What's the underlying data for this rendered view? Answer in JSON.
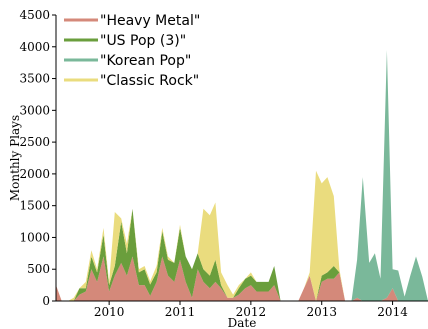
{
  "chart_data": {
    "type": "area",
    "stacked": true,
    "xlabel": "Date",
    "ylabel": "Monthly Plays",
    "xlim": [
      2009.25,
      2014.5
    ],
    "ylim": [
      0,
      4500
    ],
    "yticks": [
      0,
      500,
      1000,
      1500,
      2000,
      2500,
      3000,
      3500,
      4000,
      4500
    ],
    "xticks": [
      2010,
      2011,
      2012,
      2013,
      2014
    ],
    "grid": false,
    "legend_position": "top-left",
    "x": [
      2009.25,
      2009.33,
      2009.42,
      2009.5,
      2009.58,
      2009.67,
      2009.75,
      2009.83,
      2009.92,
      2010.0,
      2010.08,
      2010.17,
      2010.25,
      2010.33,
      2010.42,
      2010.5,
      2010.58,
      2010.67,
      2010.75,
      2010.83,
      2010.92,
      2011.0,
      2011.08,
      2011.17,
      2011.25,
      2011.33,
      2011.42,
      2011.5,
      2011.58,
      2011.67,
      2011.75,
      2011.83,
      2011.92,
      2012.0,
      2012.08,
      2012.17,
      2012.25,
      2012.33,
      2012.42,
      2012.5,
      2012.58,
      2012.67,
      2012.75,
      2012.83,
      2012.92,
      2013.0,
      2013.08,
      2013.17,
      2013.25,
      2013.33,
      2013.42,
      2013.5,
      2013.58,
      2013.67,
      2013.75,
      2013.83,
      2013.92,
      2014.0,
      2014.08,
      2014.17,
      2014.25,
      2014.33,
      2014.42,
      2014.5
    ],
    "series": [
      {
        "name": "\"Heavy Metal\"",
        "color": "#d4897a",
        "values": [
          250,
          0,
          0,
          0,
          100,
          150,
          500,
          300,
          700,
          150,
          400,
          600,
          400,
          700,
          250,
          250,
          80,
          300,
          700,
          400,
          300,
          650,
          300,
          50,
          500,
          300,
          200,
          300,
          200,
          50,
          50,
          100,
          200,
          250,
          150,
          150,
          150,
          250,
          0,
          0,
          0,
          0,
          200,
          400,
          0,
          300,
          350,
          350,
          450,
          0,
          0,
          50,
          0,
          0,
          0,
          0,
          50,
          200,
          0,
          0,
          0,
          0,
          0,
          0
        ]
      },
      {
        "name": "\"US Pop (3)\"",
        "color": "#6a9e3c",
        "values": [
          0,
          0,
          0,
          0,
          100,
          50,
          200,
          150,
          350,
          100,
          150,
          650,
          350,
          750,
          200,
          250,
          180,
          150,
          400,
          250,
          300,
          500,
          400,
          450,
          250,
          200,
          200,
          350,
          50,
          0,
          0,
          100,
          150,
          150,
          150,
          150,
          150,
          300,
          0,
          0,
          0,
          0,
          0,
          0,
          0,
          100,
          100,
          200,
          0,
          0,
          0,
          0,
          0,
          0,
          0,
          0,
          0,
          0,
          0,
          0,
          0,
          0,
          0,
          0
        ]
      },
      {
        "name": "\"Korean Pop\"",
        "color": "#7ab89a",
        "values": [
          0,
          0,
          0,
          0,
          0,
          0,
          0,
          0,
          0,
          0,
          0,
          0,
          0,
          0,
          0,
          0,
          0,
          0,
          0,
          0,
          0,
          0,
          0,
          0,
          0,
          0,
          0,
          0,
          0,
          0,
          0,
          0,
          0,
          0,
          0,
          0,
          0,
          0,
          0,
          0,
          0,
          0,
          0,
          0,
          0,
          0,
          0,
          0,
          0,
          0,
          0,
          600,
          1950,
          600,
          750,
          350,
          3900,
          300,
          480,
          70,
          400,
          700,
          380,
          0
        ]
      },
      {
        "name": "\"Classic Rock\"",
        "color": "#eadc7e",
        "values": [
          0,
          0,
          0,
          50,
          0,
          100,
          100,
          50,
          100,
          50,
          850,
          50,
          150,
          0,
          50,
          50,
          50,
          100,
          50,
          50,
          0,
          50,
          0,
          0,
          0,
          950,
          950,
          900,
          200,
          200,
          50,
          50,
          0,
          50,
          0,
          0,
          0,
          0,
          0,
          0,
          0,
          0,
          0,
          50,
          2050,
          1450,
          1500,
          1100,
          50,
          0,
          0,
          0,
          0,
          0,
          0,
          0,
          0,
          0,
          0,
          0,
          0,
          0,
          0,
          0
        ]
      }
    ]
  }
}
